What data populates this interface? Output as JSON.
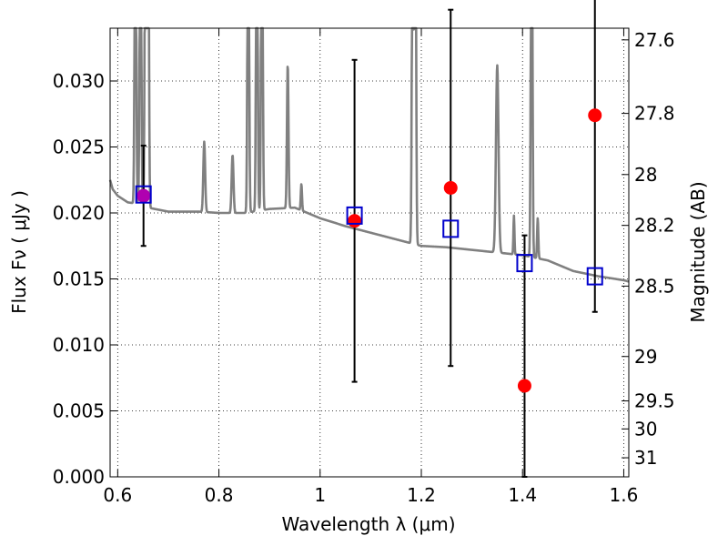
{
  "chart_data": {
    "type": "scatter",
    "xlabel": "Wavelength  λ (μm)",
    "ylabel": "Flux  Fν  ( μJy )",
    "y2label": "Magnitude (AB)",
    "xlim": [
      0.585,
      1.61
    ],
    "ylim": [
      0.0,
      0.034
    ],
    "x_ticks": [
      0.6,
      0.8,
      1.0,
      1.2,
      1.4,
      1.6
    ],
    "x_tick_labels": [
      "0.6",
      "0.8",
      "1",
      "1.2",
      "1.4",
      "1.6"
    ],
    "y_ticks": [
      0.0,
      0.005,
      0.01,
      0.015,
      0.02,
      0.025,
      0.03
    ],
    "y_tick_labels": [
      "0.000",
      "0.005",
      "0.010",
      "0.015",
      "0.020",
      "0.025",
      "0.030"
    ],
    "y2_ticks": [
      27.6,
      27.8,
      28,
      28.2,
      28.5,
      29,
      29.5,
      30,
      31
    ],
    "y2_tick_labels": [
      "27.6",
      "27.8",
      "28",
      "28.2",
      "28.5",
      "29",
      "29.5",
      "30",
      "31"
    ],
    "grid": true,
    "colors": {
      "spectrum": "#808080",
      "observed": "#ff0000",
      "model": "#0000cc",
      "errorbar": "#000000",
      "overlap": "#b000b0"
    },
    "series": [
      {
        "type": "line",
        "continuum": [
          [
            0.585,
            0.0225
          ],
          [
            0.59,
            0.0218
          ],
          [
            0.6,
            0.0213
          ],
          [
            0.62,
            0.0208
          ],
          [
            0.64,
            0.0207
          ],
          [
            0.66,
            0.0204
          ],
          [
            0.7,
            0.0201
          ],
          [
            0.76,
            0.0201
          ],
          [
            0.8,
            0.02
          ],
          [
            0.85,
            0.02
          ],
          [
            0.9,
            0.0203
          ],
          [
            0.95,
            0.0204
          ],
          [
            1.0,
            0.0196
          ],
          [
            1.05,
            0.019
          ],
          [
            1.1,
            0.0185
          ],
          [
            1.15,
            0.018
          ],
          [
            1.2,
            0.0175
          ],
          [
            1.25,
            0.0174
          ],
          [
            1.3,
            0.0172
          ],
          [
            1.35,
            0.017
          ],
          [
            1.4,
            0.0168
          ],
          [
            1.45,
            0.0164
          ],
          [
            1.5,
            0.0156
          ],
          [
            1.55,
            0.0152
          ],
          [
            1.6,
            0.0149
          ],
          [
            1.61,
            0.0148
          ]
        ],
        "emission_lines": [
          [
            0.635,
            0.05,
            0.0015
          ],
          [
            0.645,
            0.05,
            0.0015
          ],
          [
            0.655,
            0.05,
            0.0015
          ],
          [
            0.66,
            0.05,
            0.0015
          ],
          [
            0.771,
            0.0254,
            0.0018
          ],
          [
            0.827,
            0.0244,
            0.0018
          ],
          [
            0.858,
            0.05,
            0.0015
          ],
          [
            0.875,
            0.05,
            0.0015
          ],
          [
            0.885,
            0.05,
            0.0015
          ],
          [
            0.936,
            0.0313,
            0.0015
          ],
          [
            0.963,
            0.0222,
            0.0012
          ],
          [
            1.183,
            0.05,
            0.0015
          ],
          [
            1.188,
            0.05,
            0.0015
          ],
          [
            1.35,
            0.0312,
            0.0025
          ],
          [
            1.383,
            0.0198,
            0.001
          ],
          [
            1.418,
            0.05,
            0.0015
          ],
          [
            1.43,
            0.0196,
            0.0012
          ]
        ]
      },
      {
        "type": "errorbar",
        "x": [
          0.651,
          1.068,
          1.258,
          1.404,
          1.543
        ],
        "y": [
          0.0213,
          0.0194,
          0.0219,
          0.0069,
          0.0274
        ],
        "yerr_low": [
          0.0038,
          0.0122,
          0.0135,
          0.0069,
          0.0149
        ],
        "yerr_high": [
          0.0038,
          0.0122,
          0.0135,
          0.0114,
          0.0149
        ]
      },
      {
        "type": "scatter",
        "x": [
          0.651,
          1.068,
          1.258,
          1.404,
          1.543
        ],
        "y": [
          0.0214,
          0.0198,
          0.0188,
          0.0162,
          0.0152
        ]
      }
    ]
  }
}
